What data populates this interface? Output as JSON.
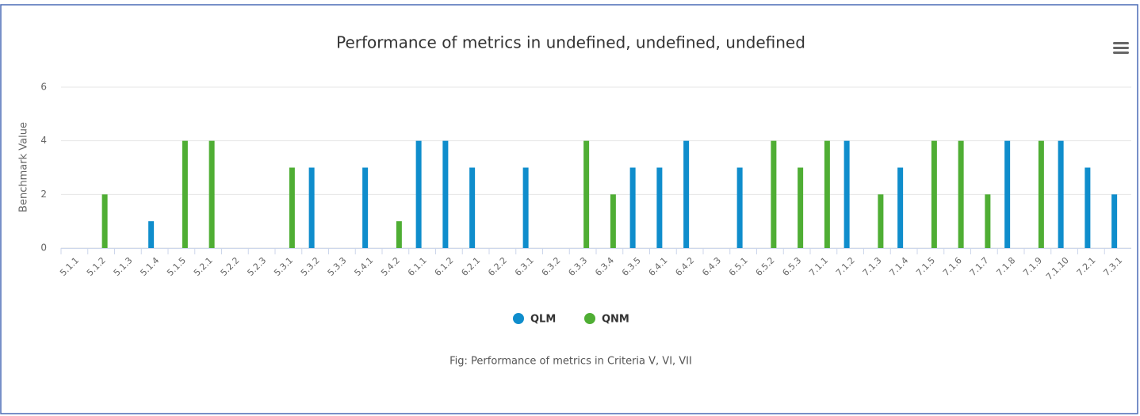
{
  "chart_data": {
    "type": "bar",
    "title": "Performance of metrics in undefined, undefined, undefined",
    "caption": "Fig: Performance of metrics in Criteria V, VI, VII",
    "y_label": "Benchmark Value",
    "categories": [
      "5.1.1",
      "5.1.2",
      "5.1.3",
      "5.1.4",
      "5.1.5",
      "5.2.1",
      "5.2.2",
      "5.2.3",
      "5.3.1",
      "5.3.2",
      "5.3.3",
      "5.4.1",
      "5.4.2",
      "6.1.1",
      "6.1.2",
      "6.2.1",
      "6.2.2",
      "6.3.1",
      "6.3.2",
      "6.3.3",
      "6.3.4",
      "6.3.5",
      "6.4.1",
      "6.4.2",
      "6.4.3",
      "6.5.1",
      "6.5.2",
      "6.5.3",
      "7.1.1",
      "7.1.2",
      "7.1.3",
      "7.1.4",
      "7.1.5",
      "7.1.6",
      "7.1.7",
      "7.1.8",
      "7.1.9",
      "7.1.10",
      "7.2.1",
      "7.3.1"
    ],
    "series": [
      {
        "name": "QLM",
        "color": "#0f8dcc",
        "values": [
          null,
          null,
          null,
          1,
          null,
          null,
          null,
          null,
          null,
          3,
          null,
          3,
          null,
          4,
          4,
          3,
          null,
          3,
          null,
          null,
          null,
          3,
          3,
          4,
          null,
          3,
          null,
          null,
          null,
          4,
          null,
          3,
          null,
          null,
          null,
          4,
          null,
          4,
          3,
          2
        ]
      },
      {
        "name": "QNM",
        "color": "#4fae34",
        "values": [
          null,
          2,
          null,
          null,
          4,
          4,
          null,
          null,
          3,
          null,
          null,
          null,
          1,
          null,
          null,
          null,
          null,
          null,
          null,
          4,
          2,
          null,
          null,
          null,
          null,
          null,
          4,
          3,
          4,
          null,
          2,
          null,
          4,
          4,
          2,
          null,
          4,
          null,
          null,
          null
        ]
      }
    ],
    "ylim": [
      0,
      6
    ],
    "yticks": [
      0,
      2,
      4,
      6
    ],
    "grid": true
  }
}
